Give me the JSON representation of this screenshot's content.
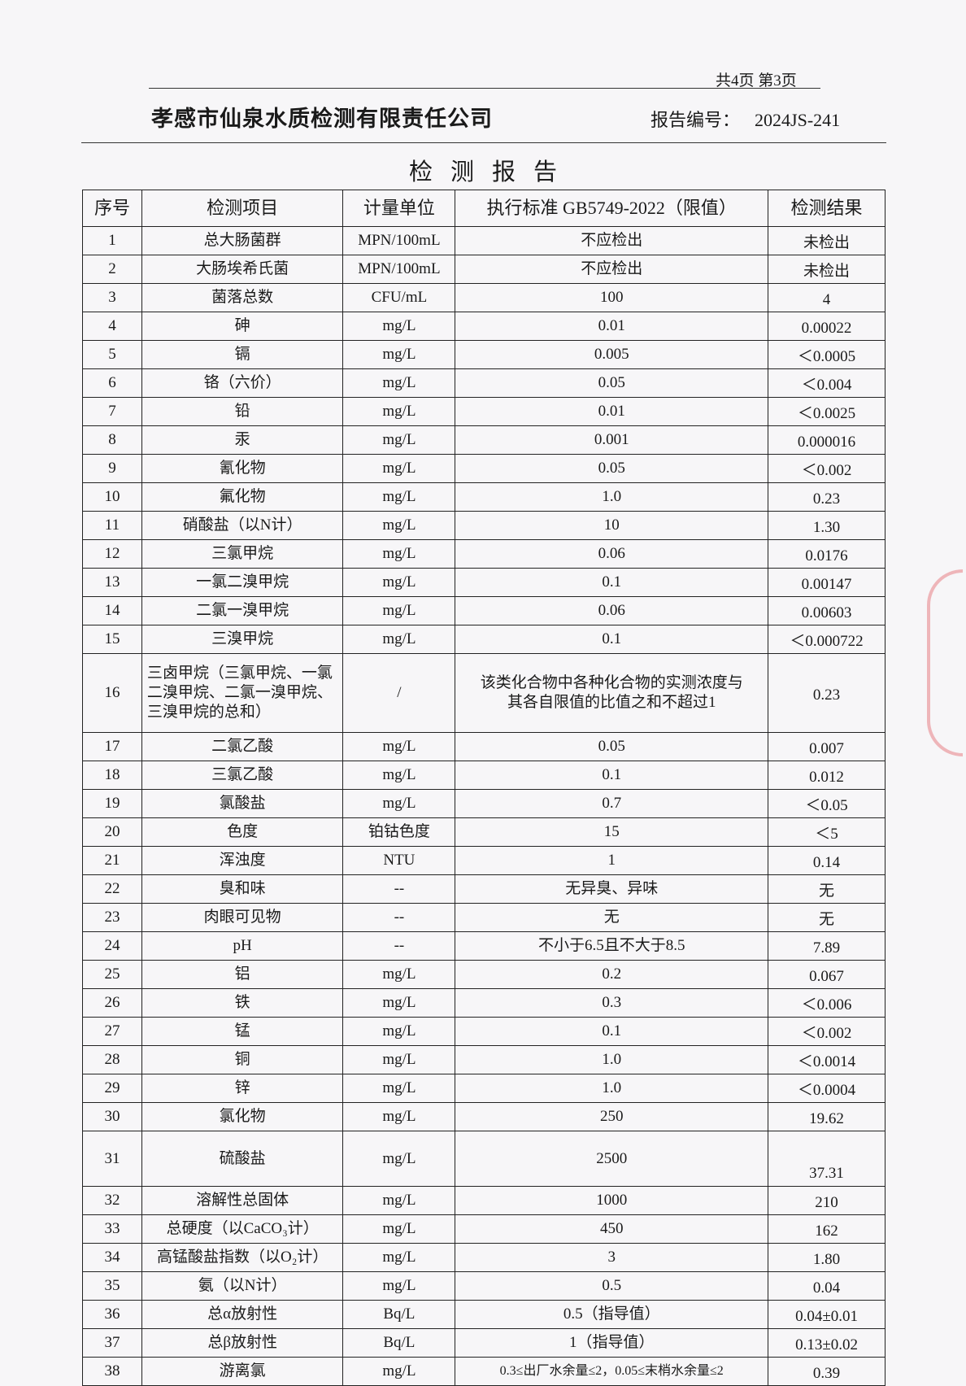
{
  "header": {
    "page_info": "共4页 第3页",
    "company": "孝感市仙泉水质检测有限责任公司",
    "report_no_label": "报告编号：",
    "report_no": "2024JS-241",
    "title": "检测报告"
  },
  "table": {
    "columns": [
      "序号",
      "检测项目",
      "计量单位",
      "执行标准 GB5749-2022（限值）",
      "检测结果"
    ],
    "rows": [
      [
        "1",
        "总大肠菌群",
        "MPN/100mL",
        "不应检出",
        "未检出"
      ],
      [
        "2",
        "大肠埃希氏菌",
        "MPN/100mL",
        "不应检出",
        "未检出"
      ],
      [
        "3",
        "菌落总数",
        "CFU/mL",
        "100",
        "4"
      ],
      [
        "4",
        "砷",
        "mg/L",
        "0.01",
        "0.00022"
      ],
      [
        "5",
        "镉",
        "mg/L",
        "0.005",
        "＜0.0005"
      ],
      [
        "6",
        "铬（六价）",
        "mg/L",
        "0.05",
        "＜0.004"
      ],
      [
        "7",
        "铅",
        "mg/L",
        "0.01",
        "＜0.0025"
      ],
      [
        "8",
        "汞",
        "mg/L",
        "0.001",
        "0.000016"
      ],
      [
        "9",
        "氰化物",
        "mg/L",
        "0.05",
        "＜0.002"
      ],
      [
        "10",
        "氟化物",
        "mg/L",
        "1.0",
        "0.23"
      ],
      [
        "11",
        "硝酸盐（以N计）",
        "mg/L",
        "10",
        "1.30"
      ],
      [
        "12",
        "三氯甲烷",
        "mg/L",
        "0.06",
        "0.0176"
      ],
      [
        "13",
        "一氯二溴甲烷",
        "mg/L",
        "0.1",
        "0.00147"
      ],
      [
        "14",
        "二氯一溴甲烷",
        "mg/L",
        "0.06",
        "0.00603"
      ],
      [
        "15",
        "三溴甲烷",
        "mg/L",
        "0.1",
        "＜0.000722"
      ],
      [
        "16",
        "三卤甲烷（三氯甲烷、一氯二溴甲烷、二氯一溴甲烷、三溴甲烷的总和）",
        "/",
        "该类化合物中各种化合物的实测浓度与其各自限值的比值之和不超过1",
        "0.23"
      ],
      [
        "17",
        "二氯乙酸",
        "mg/L",
        "0.05",
        "0.007"
      ],
      [
        "18",
        "三氯乙酸",
        "mg/L",
        "0.1",
        "0.012"
      ],
      [
        "19",
        "氯酸盐",
        "mg/L",
        "0.7",
        "＜0.05"
      ],
      [
        "20",
        "色度",
        "铂钴色度",
        "15",
        "＜5"
      ],
      [
        "21",
        "浑浊度",
        "NTU",
        "1",
        "0.14"
      ],
      [
        "22",
        "臭和味",
        "--",
        "无异臭、异味",
        "无"
      ],
      [
        "23",
        "肉眼可见物",
        "--",
        "无",
        "无"
      ],
      [
        "24",
        "pH",
        "--",
        "不小于6.5且不大于8.5",
        "7.89"
      ],
      [
        "25",
        "铝",
        "mg/L",
        "0.2",
        "0.067"
      ],
      [
        "26",
        "铁",
        "mg/L",
        "0.3",
        "＜0.006"
      ],
      [
        "27",
        "锰",
        "mg/L",
        "0.1",
        "＜0.002"
      ],
      [
        "28",
        "铜",
        "mg/L",
        "1.0",
        "＜0.0014"
      ],
      [
        "29",
        "锌",
        "mg/L",
        "1.0",
        "＜0.0004"
      ],
      [
        "30",
        "氯化物",
        "mg/L",
        "250",
        "19.62"
      ],
      [
        "31",
        "硫酸盐",
        "mg/L",
        "2500",
        "37.31"
      ],
      [
        "32",
        "溶解性总固体",
        "mg/L",
        "1000",
        "210"
      ],
      [
        "33",
        "总硬度（以CaCO₃计）",
        "mg/L",
        "450",
        "162"
      ],
      [
        "34",
        "高锰酸盐指数（以O₂计）",
        "mg/L",
        "3",
        "1.80"
      ],
      [
        "35",
        "氨（以N计）",
        "mg/L",
        "0.5",
        "0.04"
      ],
      [
        "36",
        "总α放射性",
        "Bq/L",
        "0.5（指导值）",
        "0.04±0.01"
      ],
      [
        "37",
        "总β放射性",
        "Bq/L",
        "1（指导值）",
        "0.13±0.02"
      ],
      [
        "38",
        "游离氯",
        "mg/L",
        "0.3≤出厂水余量≤2，0.05≤末梢水余量≤2",
        "0.39"
      ]
    ]
  },
  "colors": {
    "stamp": "#dc3c46",
    "ink": "#1a1a1a"
  }
}
